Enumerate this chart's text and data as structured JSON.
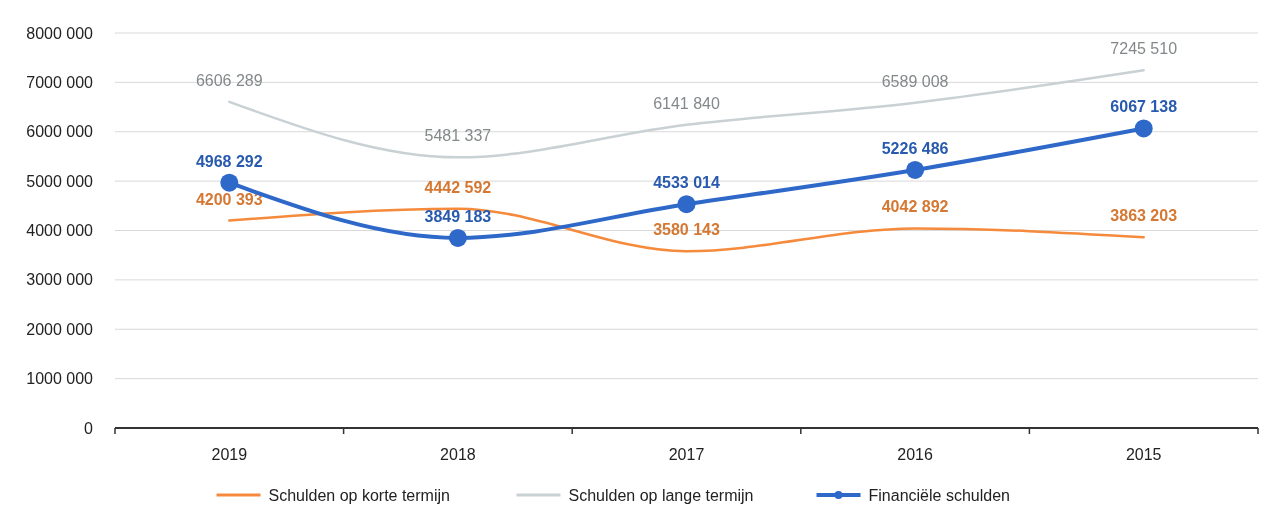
{
  "chart_data": {
    "type": "line",
    "categories": [
      "2019",
      "2018",
      "2017",
      "2016",
      "2015"
    ],
    "series": [
      {
        "name": "Schulden op korte termijn",
        "color": "#f58a3c",
        "values": [
          4200393,
          4442592,
          3580143,
          4042892,
          3863203
        ]
      },
      {
        "name": "Schulden op lange termijn",
        "color": "#c9d1d4",
        "values": [
          6606289,
          5481337,
          6141840,
          6589008,
          7245510
        ]
      },
      {
        "name": "Financiële schulden",
        "color": "#2e68c9",
        "values": [
          4968292,
          3849183,
          4533014,
          5226486,
          6067138
        ],
        "marker": "circle"
      }
    ],
    "ylim": [
      0,
      8000000
    ],
    "yticks": [
      0,
      {
        "value": 1000000,
        "label": "1000 000"
      },
      {
        "value": 2000000,
        "label": "2000 000"
      },
      {
        "value": 3000000,
        "label": "3000 000"
      },
      {
        "value": 4000000,
        "label": "4000 000"
      },
      {
        "value": 5000000,
        "label": "5000 000"
      },
      {
        "value": 6000000,
        "label": "6000 000"
      },
      {
        "value": 7000000,
        "label": "7000 000"
      },
      {
        "value": 8000000,
        "label": "8000 000"
      }
    ],
    "grid": "y",
    "legend": "bottom",
    "data_labels": true,
    "marker": "none",
    "line_style": "solid"
  }
}
